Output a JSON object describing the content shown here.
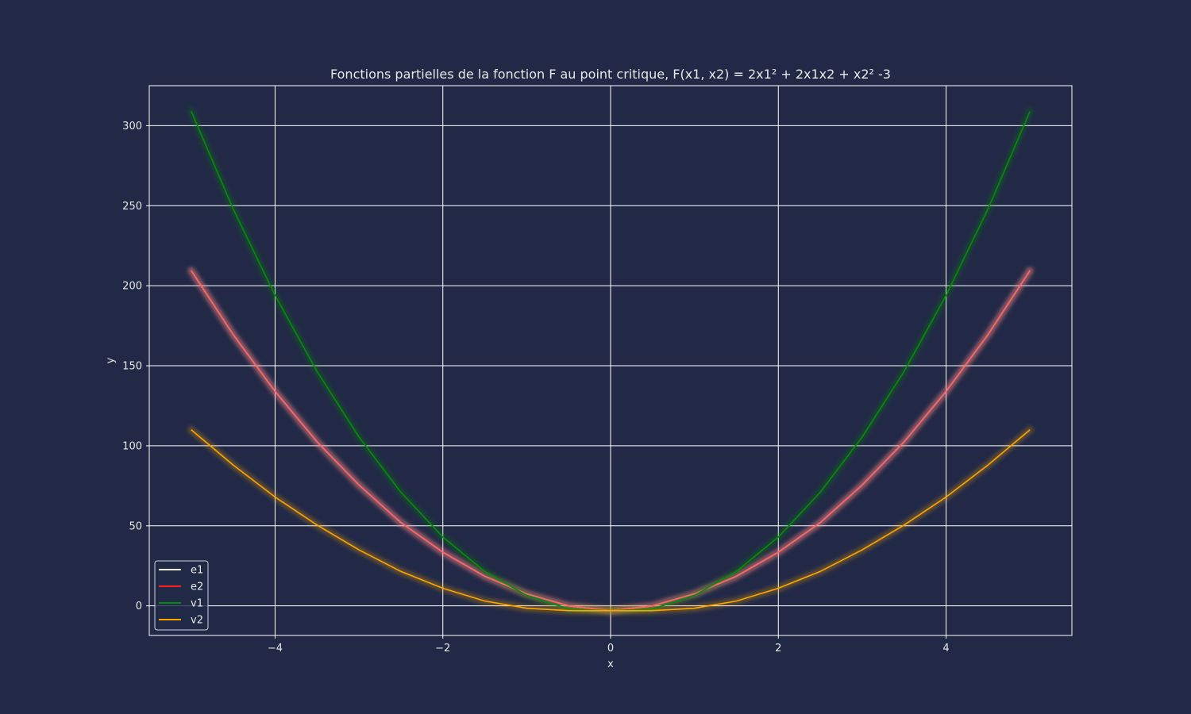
{
  "chart_data": {
    "type": "line",
    "title": "Fonctions partielles de la fonction F au point critique, F(x1, x2) = 2x1² + 2x1x2 + x2² -3",
    "xlabel": "x",
    "ylabel": "y",
    "xlim": [
      -5.5,
      5.5
    ],
    "ylim": [
      -18.5,
      325
    ],
    "grid": true,
    "legend_position": "lower-left",
    "xticks": [
      -4,
      -2,
      0,
      2,
      4
    ],
    "xtick_labels": [
      "−4",
      "−2",
      "0",
      "2",
      "4"
    ],
    "yticks": [
      0,
      50,
      100,
      150,
      200,
      250,
      300
    ],
    "ytick_labels": [
      "0",
      "50",
      "100",
      "150",
      "200",
      "250",
      "300"
    ],
    "series": [
      {
        "name": "e1",
        "color": "#ffffff",
        "x": [
          -5,
          -4.5,
          -4,
          -3.5,
          -3,
          -2.5,
          -2,
          -1.5,
          -1,
          -0.5,
          0,
          0.5,
          1,
          1.5,
          2,
          2.5,
          3,
          3.5,
          4,
          4.5,
          5
        ],
        "y": [
          209.5,
          169.5,
          134,
          102.5,
          75.5,
          52,
          33.5,
          18.5,
          7.5,
          0,
          -3,
          0,
          7.5,
          18.5,
          33.5,
          52,
          75.5,
          102.5,
          134,
          169.5,
          209.5
        ]
      },
      {
        "name": "e2",
        "color": "#ff1f1f",
        "x": [
          -5,
          -4.5,
          -4,
          -3.5,
          -3,
          -2.5,
          -2,
          -1.5,
          -1,
          -0.5,
          0,
          0.5,
          1,
          1.5,
          2,
          2.5,
          3,
          3.5,
          4,
          4.5,
          5
        ],
        "y": [
          209.5,
          169.5,
          134,
          102.5,
          75.5,
          52,
          33.5,
          18.5,
          7.5,
          0,
          -3,
          0,
          7.5,
          18.5,
          33.5,
          52,
          75.5,
          102.5,
          134,
          169.5,
          209.5
        ]
      },
      {
        "name": "v1",
        "color": "#0a8a0a",
        "x": [
          -5,
          -4.5,
          -4,
          -3.5,
          -3,
          -2.5,
          -2,
          -1.5,
          -1,
          -0.5,
          0,
          0.5,
          1,
          1.5,
          2,
          2.5,
          3,
          3.5,
          4,
          4.5,
          5
        ],
        "y": [
          309,
          248,
          194,
          146.5,
          105.5,
          71,
          43,
          21.5,
          6.5,
          -2,
          -3,
          -2,
          6.5,
          21.5,
          43,
          71,
          105.5,
          146.5,
          194,
          248,
          309
        ]
      },
      {
        "name": "v2",
        "color": "#ffa500",
        "x": [
          -5,
          -4.5,
          -4,
          -3.5,
          -3,
          -2.5,
          -2,
          -1.5,
          -1,
          -0.5,
          0,
          0.5,
          1,
          1.5,
          2,
          2.5,
          3,
          3.5,
          4,
          4.5,
          5
        ],
        "y": [
          110,
          88,
          68,
          50.5,
          35,
          21.5,
          11,
          3,
          -1.5,
          -3,
          -3,
          -3,
          -1.5,
          3,
          11,
          21.5,
          35,
          50.5,
          68,
          88,
          110
        ]
      }
    ]
  }
}
